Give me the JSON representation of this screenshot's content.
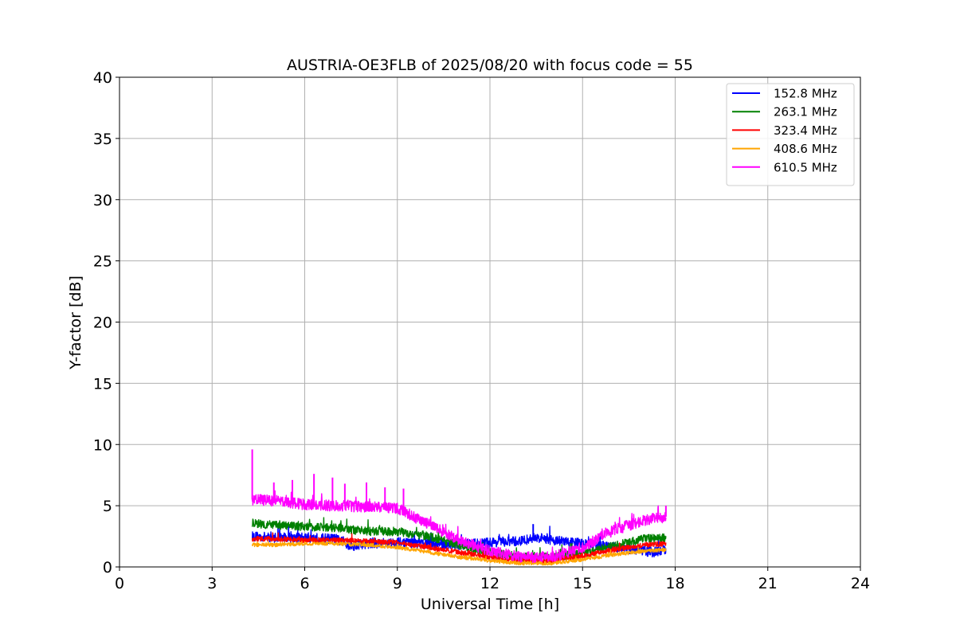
{
  "chart_data": {
    "type": "line",
    "title": "AUSTRIA-OE3FLB of 2025/08/20 with focus code = 55",
    "xlabel": "Universal Time [h]",
    "ylabel": "Y-factor [dB]",
    "xlim": [
      0,
      24
    ],
    "ylim": [
      0,
      40
    ],
    "xticks": [
      0,
      3,
      6,
      9,
      12,
      15,
      18,
      21,
      24
    ],
    "yticks": [
      0,
      5,
      10,
      15,
      20,
      25,
      30,
      35,
      40
    ],
    "grid": true,
    "legend_position": "top-right",
    "series": [
      {
        "name": "152.8 MHz",
        "color": "#0000ff",
        "noise": 0.8,
        "x": [
          4.3,
          5,
          6,
          7,
          7.5,
          8,
          9,
          10,
          11,
          12,
          13,
          13.5,
          14,
          15,
          16,
          17,
          17.3,
          17.7
        ],
        "y": [
          2.5,
          2.4,
          2.4,
          2.3,
          1.7,
          1.9,
          2.0,
          1.9,
          1.8,
          2.0,
          2.1,
          2.4,
          2.2,
          1.9,
          1.6,
          1.3,
          1.2,
          1.4
        ]
      },
      {
        "name": "263.1 MHz",
        "color": "#008000",
        "noise": 0.7,
        "x": [
          4.3,
          5,
          6,
          7,
          8,
          9,
          10,
          11,
          12,
          13,
          14,
          15,
          16,
          17,
          17.7
        ],
        "y": [
          3.6,
          3.4,
          3.3,
          3.2,
          2.9,
          2.9,
          2.5,
          1.8,
          1.2,
          0.8,
          0.8,
          1.1,
          1.7,
          2.3,
          2.4
        ]
      },
      {
        "name": "323.4 MHz",
        "color": "#ff0000",
        "noise": 0.4,
        "x": [
          4.3,
          5,
          6,
          7,
          8,
          9,
          10,
          11,
          12,
          13,
          14,
          15,
          16,
          17,
          17.7
        ],
        "y": [
          2.3,
          2.3,
          2.2,
          2.2,
          2.1,
          2.0,
          1.6,
          1.2,
          0.8,
          0.5,
          0.5,
          0.9,
          1.4,
          1.8,
          1.9
        ]
      },
      {
        "name": "408.6 MHz",
        "color": "#ffa500",
        "noise": 0.3,
        "x": [
          4.3,
          5,
          6,
          7,
          8,
          9,
          10,
          11,
          12,
          13,
          14,
          15,
          16,
          17,
          17.7
        ],
        "y": [
          1.8,
          1.8,
          1.9,
          1.9,
          1.8,
          1.6,
          1.2,
          0.8,
          0.5,
          0.3,
          0.3,
          0.6,
          1.0,
          1.3,
          1.4
        ]
      },
      {
        "name": "610.5 MHz",
        "color": "#ff00ff",
        "noise": 0.9,
        "x": [
          4.3,
          5,
          6,
          7,
          8,
          9,
          10,
          11,
          12,
          13,
          14,
          15,
          16,
          17,
          17.7
        ],
        "y": [
          5.5,
          5.4,
          5.1,
          5.0,
          4.9,
          4.8,
          3.5,
          2.2,
          1.3,
          0.8,
          0.8,
          1.6,
          3.0,
          3.8,
          4.1
        ]
      }
    ],
    "spikes": [
      {
        "series": "610.5 MHz",
        "x": 4.3,
        "y": 9.6
      },
      {
        "series": "610.5 MHz",
        "x": 5.0,
        "y": 6.9
      },
      {
        "series": "610.5 MHz",
        "x": 5.6,
        "y": 7.1
      },
      {
        "series": "610.5 MHz",
        "x": 6.3,
        "y": 7.6
      },
      {
        "series": "610.5 MHz",
        "x": 6.9,
        "y": 7.3
      },
      {
        "series": "610.5 MHz",
        "x": 7.3,
        "y": 6.8
      },
      {
        "series": "610.5 MHz",
        "x": 8.0,
        "y": 6.9
      },
      {
        "series": "610.5 MHz",
        "x": 8.6,
        "y": 6.5
      },
      {
        "series": "610.5 MHz",
        "x": 9.2,
        "y": 6.4
      },
      {
        "series": "152.8 MHz",
        "x": 13.4,
        "y": 3.5
      },
      {
        "series": "610.5 MHz",
        "x": 17.7,
        "y": 5.0
      }
    ]
  }
}
